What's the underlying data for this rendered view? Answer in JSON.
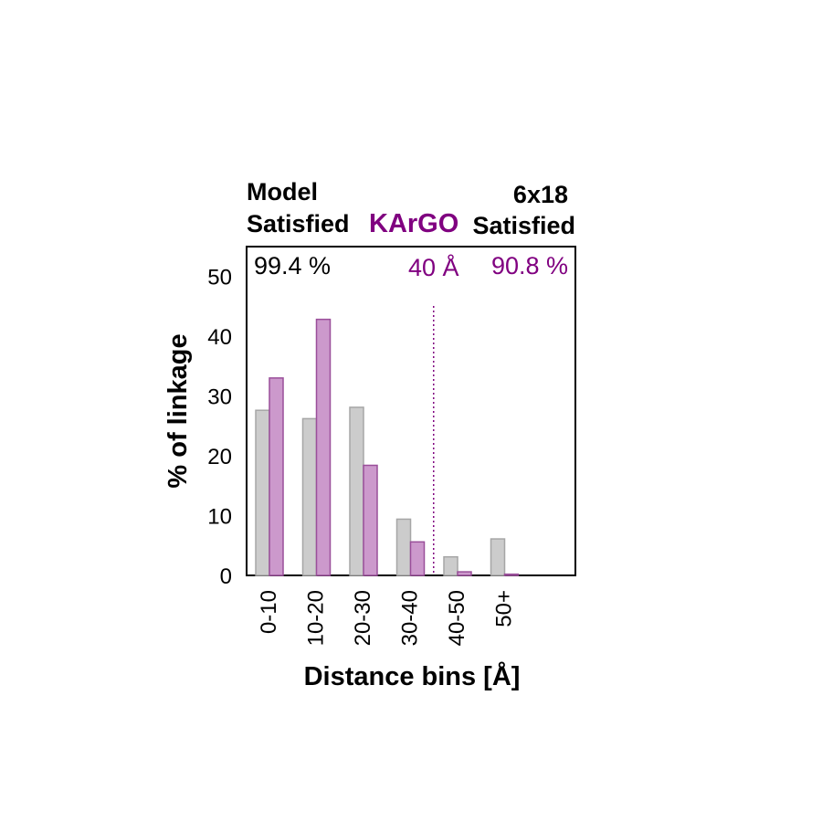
{
  "header": {
    "left_line1": "Model",
    "left_line2": "Satisfied",
    "center": "KArGO",
    "right_line1": "6x18",
    "right_line2": "Satisfied"
  },
  "annotations": {
    "model_satisfied": "99.4 %",
    "threshold": "40 Å",
    "xlink_satisfied": "90.8 %"
  },
  "colors": {
    "model_fill": "#cccccc",
    "model_stroke": "#a6a6a6",
    "kargo_fill": "#cc99cc",
    "kargo_stroke": "#9a4f9a",
    "accent": "#800080"
  },
  "chart_data": {
    "type": "bar",
    "categories": [
      "0-10",
      "10-20",
      "20-30",
      "30-40",
      "40-50",
      "50+"
    ],
    "series": [
      {
        "values": [
          27.6,
          26.2,
          28.1,
          9.4,
          3.1,
          6.1
        ]
      },
      {
        "values": [
          33.0,
          42.8,
          18.4,
          5.6,
          0.6,
          0.2
        ]
      }
    ],
    "ylabel": "% of linkage",
    "xlabel": "Distance bins [Å]",
    "ylim": [
      0,
      55
    ],
    "yticks": [
      0,
      10,
      20,
      30,
      40,
      50
    ],
    "threshold_x": 40,
    "grid": false
  }
}
